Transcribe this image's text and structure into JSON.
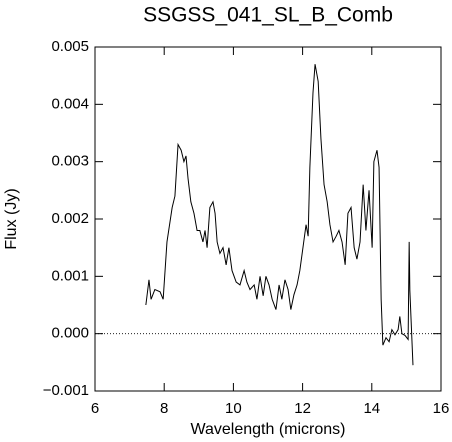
{
  "chart_data": {
    "type": "line",
    "title": "SSGSS_041_SL_B_Comb",
    "x_label": "Wavelength (microns)",
    "y_label": "Flux (Jy)",
    "xlim": [
      6,
      16
    ],
    "xticks": [
      6,
      8,
      10,
      12,
      14,
      16
    ],
    "ylim": [
      -0.001,
      0.005
    ],
    "yticks": [
      {
        "value": -0.001,
        "label": "−0.001"
      },
      {
        "value": 0,
        "label": "0.000"
      },
      0.001,
      0.002,
      0.003,
      0.004,
      0.005
    ],
    "reference_line": 0,
    "color": "#000000",
    "x": [
      7.47,
      7.56,
      7.62,
      7.73,
      7.88,
      7.97,
      8.08,
      8.23,
      8.31,
      8.4,
      8.49,
      8.57,
      8.63,
      8.69,
      8.77,
      8.86,
      8.95,
      9.03,
      9.12,
      9.18,
      9.24,
      9.32,
      9.41,
      9.47,
      9.53,
      9.61,
      9.7,
      9.79,
      9.87,
      9.96,
      10.08,
      10.19,
      10.31,
      10.39,
      10.48,
      10.6,
      10.68,
      10.77,
      10.86,
      10.94,
      11.03,
      11.12,
      11.23,
      11.32,
      11.4,
      11.49,
      11.58,
      11.66,
      11.75,
      11.84,
      11.92,
      12.01,
      12.1,
      12.16,
      12.21,
      12.3,
      12.36,
      12.45,
      12.53,
      12.62,
      12.71,
      12.79,
      12.88,
      12.97,
      13.05,
      13.14,
      13.23,
      13.31,
      13.4,
      13.49,
      13.57,
      13.66,
      13.75,
      13.83,
      13.92,
      14.01,
      14.06,
      14.15,
      14.21,
      14.27,
      14.32,
      14.41,
      14.5,
      14.58,
      14.67,
      14.76,
      14.81,
      14.87,
      14.96,
      15.05,
      15.08,
      15.1,
      15.19
    ],
    "values": [
      0.0005,
      0.00094,
      0.0006,
      0.00077,
      0.00073,
      0.0006,
      0.0016,
      0.0022,
      0.0024,
      0.0033,
      0.0032,
      0.003,
      0.0031,
      0.0027,
      0.0023,
      0.0021,
      0.0018,
      0.0018,
      0.0016,
      0.0018,
      0.0015,
      0.0022,
      0.0023,
      0.0021,
      0.0016,
      0.0014,
      0.0015,
      0.0012,
      0.0015,
      0.0011,
      0.0009,
      0.00085,
      0.0011,
      0.0009,
      0.00077,
      0.00085,
      0.0006,
      0.001,
      0.00066,
      0.001,
      0.00085,
      0.0006,
      0.00042,
      0.00085,
      0.0006,
      0.00094,
      0.00077,
      0.00042,
      0.00068,
      0.00085,
      0.0011,
      0.0015,
      0.0019,
      0.0017,
      0.0029,
      0.0042,
      0.0047,
      0.0044,
      0.0034,
      0.0026,
      0.0023,
      0.0019,
      0.0016,
      0.0017,
      0.0018,
      0.0016,
      0.0012,
      0.0021,
      0.0022,
      0.0015,
      0.0013,
      0.0016,
      0.0026,
      0.0018,
      0.0025,
      0.0015,
      0.003,
      0.0032,
      0.0029,
      0.0006,
      -0.0002,
      -7e-05,
      -0.00014,
      7e-05,
      -2e-05,
      7e-05,
      0.0003,
      0,
      -3e-05,
      -0.0001,
      0.0016,
      0.00075,
      -0.00055
    ]
  }
}
